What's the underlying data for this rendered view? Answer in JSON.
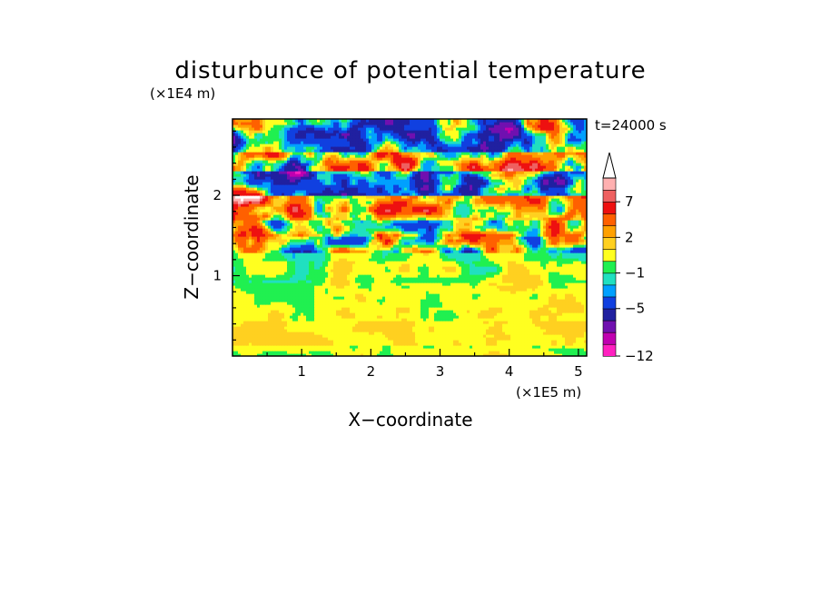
{
  "chart_data": {
    "type": "heatmap",
    "title": "disturbunce of potential temperature",
    "xlabel": "X−coordinate",
    "ylabel": "Z−coordinate",
    "x_scale_label": "(×1E5 m)",
    "y_scale_label": "(×1E4 m)",
    "time_label": "t=24000 s",
    "xlim": [
      0,
      5.12
    ],
    "ylim": [
      0,
      2.95
    ],
    "x_ticks": [
      "1",
      "2",
      "3",
      "4",
      "5"
    ],
    "y_ticks": [
      "1",
      "2"
    ],
    "colorbar": {
      "levels": [
        -12,
        -11,
        -9,
        -7,
        -5,
        -3,
        -2,
        -1,
        0,
        1,
        2,
        3,
        5,
        7,
        9,
        11
      ],
      "colors": [
        "#ff20c0",
        "#c000b0",
        "#7010b0",
        "#2020a0",
        "#1040e0",
        "#00a0ff",
        "#20e0c0",
        "#20f050",
        "#ffff20",
        "#ffd020",
        "#ffa000",
        "#ff6000",
        "#ee1010",
        "#ee6060",
        "#ffb0b0",
        "#ffffff"
      ],
      "tick_labels": [
        "7",
        "2",
        "−1",
        "−5",
        "−12"
      ],
      "extend": "max"
    },
    "vertical_profile": [
      {
        "z": [
          0.0,
          0.15
        ],
        "value": 0.3
      },
      {
        "z": [
          0.15,
          0.45
        ],
        "value": 1.0
      },
      {
        "z": [
          0.45,
          0.9
        ],
        "value": 0.5
      },
      {
        "z": [
          0.9,
          1.2
        ],
        "value": 0.2
      },
      {
        "z": [
          1.2,
          1.5
        ],
        "value": -0.4
      },
      {
        "z": [
          1.5,
          1.7
        ],
        "value": 1.2
      },
      {
        "z": [
          1.7,
          2.0
        ],
        "value": 3.0
      },
      {
        "z": [
          2.0,
          2.3
        ],
        "value": -3.0
      },
      {
        "z": [
          2.3,
          2.55
        ],
        "value": 1.5
      },
      {
        "z": [
          2.55,
          2.95
        ],
        "value": -2.0
      }
    ],
    "features": [
      {
        "x": 0.15,
        "z": 2.1,
        "value": 6.0
      },
      {
        "x": 0.9,
        "z": 2.3,
        "value": -6.0
      },
      {
        "x": 1.55,
        "z": 2.75,
        "value": -5.0
      },
      {
        "x": 1.2,
        "z": 2.6,
        "value": 4.0
      },
      {
        "x": 2.6,
        "z": 2.5,
        "value": 4.0
      },
      {
        "x": 3.9,
        "z": 2.75,
        "value": -8.0
      },
      {
        "x": 4.0,
        "z": 2.25,
        "value": 8.0
      },
      {
        "x": 4.8,
        "z": 2.4,
        "value": -5.0
      },
      {
        "x": 4.6,
        "z": 2.8,
        "value": 4.0
      }
    ]
  }
}
